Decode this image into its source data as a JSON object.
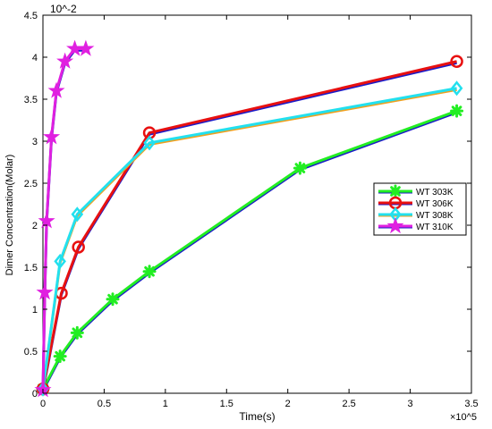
{
  "chart_data": {
    "type": "line",
    "xlabel": "Time(s)",
    "ylabel": "Dimer Concentration(Molar)",
    "x_exponent": "×10^5",
    "y_exponent": "10^-2",
    "xlim": [
      0,
      350000
    ],
    "ylim": [
      0,
      0.045
    ],
    "xticks": [
      0,
      50000,
      100000,
      150000,
      200000,
      250000,
      300000,
      350000
    ],
    "xtick_labels": [
      "0",
      "0.5",
      "1",
      "1.5",
      "2",
      "2.5",
      "3",
      "3.5"
    ],
    "yticks": [
      0,
      0.005,
      0.01,
      0.015,
      0.02,
      0.025,
      0.03,
      0.035,
      0.04,
      0.045
    ],
    "ytick_labels": [
      "0",
      "0.5",
      "1",
      "1.5",
      "2",
      "2.5",
      "3",
      "3.5",
      "4",
      "4.5"
    ],
    "grid": false,
    "legend_position": "right",
    "series": [
      {
        "name": "WT 303K",
        "color": "#22ee22",
        "under_color": "#1c1cc8",
        "marker": "asterisk",
        "marker_color": "#22ee22",
        "x": [
          0,
          14000,
          28000,
          57000,
          87000,
          210000,
          338000
        ],
        "y": [
          0.0005,
          0.0044,
          0.0072,
          0.0112,
          0.0145,
          0.0268,
          0.0336
        ]
      },
      {
        "name": "WT 306K",
        "color": "#e81010",
        "under_color": "#1c1cc8",
        "marker": "circle",
        "marker_color": "#e81010",
        "x": [
          0,
          15000,
          29000,
          87000,
          338000
        ],
        "y": [
          0.0005,
          0.0119,
          0.0174,
          0.031,
          0.0395
        ]
      },
      {
        "name": "WT 308K",
        "color": "#22e0ee",
        "under_color": "#f0a020",
        "marker": "diamond",
        "marker_color": "#22e0ee",
        "x": [
          0,
          14000,
          28000,
          87000,
          338000
        ],
        "y": [
          0.0005,
          0.0157,
          0.0213,
          0.0298,
          0.0363
        ]
      },
      {
        "name": "WT 310K",
        "color": "#e020e0",
        "under_color": "#1c1cc8",
        "marker": "pentagram",
        "marker_color": "#e020e0",
        "x": [
          0,
          1500,
          3000,
          7000,
          11000,
          18000,
          26000,
          35000
        ],
        "y": [
          0.0004,
          0.012,
          0.0205,
          0.0305,
          0.036,
          0.0395,
          0.041,
          0.041
        ]
      }
    ]
  }
}
